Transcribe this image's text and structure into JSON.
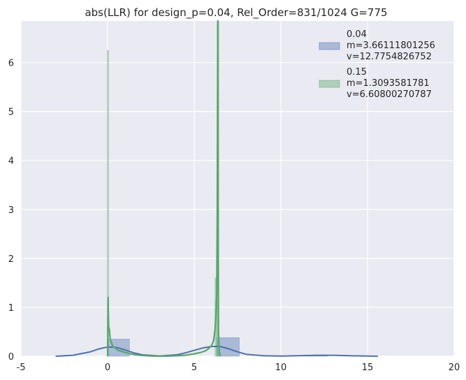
{
  "chart_data": {
    "type": "histogram-kde",
    "title": "abs(LLR) for design_p=0.04, Rel_Order=831/1024 G=775",
    "xlabel": "",
    "ylabel": "",
    "xlim": [
      -5,
      20
    ],
    "ylim": [
      0,
      6.85
    ],
    "xticks": [
      -5,
      0,
      5,
      10,
      15,
      20
    ],
    "yticks": [
      0,
      1,
      2,
      3,
      4,
      5,
      6
    ],
    "grid": true,
    "legend_position": "top-right",
    "series": [
      {
        "name": "0.04",
        "legend_lines": [
          "0.04",
          " m=3.66111801256",
          " v=12.7754826752"
        ],
        "color": "#4C72B0",
        "bins": [
          {
            "x0": 0.0,
            "x1": 1.26,
            "height": 0.35
          },
          {
            "x0": 6.3,
            "x1": 7.6,
            "height": 0.38
          },
          {
            "x0": 11.4,
            "x1": 12.7,
            "height": 0.01
          }
        ],
        "kde": [
          [
            -3.0,
            0.0
          ],
          [
            -2.0,
            0.02
          ],
          [
            -1.0,
            0.09
          ],
          [
            -0.5,
            0.15
          ],
          [
            0.0,
            0.19
          ],
          [
            0.5,
            0.18
          ],
          [
            1.0,
            0.13
          ],
          [
            1.5,
            0.07
          ],
          [
            2.0,
            0.03
          ],
          [
            3.0,
            0.005
          ],
          [
            4.0,
            0.03
          ],
          [
            4.5,
            0.07
          ],
          [
            5.0,
            0.12
          ],
          [
            5.5,
            0.17
          ],
          [
            6.0,
            0.2
          ],
          [
            6.5,
            0.2
          ],
          [
            7.0,
            0.15
          ],
          [
            7.5,
            0.09
          ],
          [
            8.0,
            0.04
          ],
          [
            9.0,
            0.01
          ],
          [
            10.0,
            0.003
          ],
          [
            11.0,
            0.01
          ],
          [
            12.0,
            0.02
          ],
          [
            13.0,
            0.02
          ],
          [
            14.0,
            0.01
          ],
          [
            15.0,
            0.003
          ],
          [
            15.6,
            0.0
          ]
        ]
      },
      {
        "name": "0.15",
        "legend_lines": [
          "0.15",
          " m=1.3093581781",
          " v=6.60800270787"
        ],
        "color": "#55A868",
        "bins": [
          {
            "x0": -0.02,
            "x1": 0.06,
            "height": 6.25
          },
          {
            "x0": 6.2,
            "x1": 6.32,
            "height": 1.6
          },
          {
            "x0": 6.32,
            "x1": 6.42,
            "height": 6.9
          }
        ],
        "kde": [
          [
            0.0,
            0.0
          ],
          [
            0.03,
            1.2
          ],
          [
            0.06,
            0.6
          ],
          [
            0.1,
            0.55
          ],
          [
            0.15,
            0.35
          ],
          [
            0.2,
            0.3
          ],
          [
            0.3,
            0.2
          ],
          [
            0.4,
            0.18
          ],
          [
            0.6,
            0.12
          ],
          [
            0.8,
            0.1
          ],
          [
            1.0,
            0.08
          ],
          [
            1.3,
            0.05
          ],
          [
            1.6,
            0.03
          ],
          [
            2.0,
            0.015
          ],
          [
            2.5,
            0.005
          ],
          [
            3.0,
            0.002
          ],
          [
            3.5,
            0.004
          ],
          [
            4.0,
            0.01
          ],
          [
            4.5,
            0.02
          ],
          [
            5.0,
            0.05
          ],
          [
            5.4,
            0.08
          ],
          [
            5.7,
            0.12
          ],
          [
            5.9,
            0.18
          ],
          [
            6.0,
            0.22
          ],
          [
            6.1,
            0.3
          ],
          [
            6.15,
            0.4
          ],
          [
            6.2,
            0.55
          ],
          [
            6.25,
            0.85
          ],
          [
            6.3,
            1.3
          ],
          [
            6.33,
            3.0
          ],
          [
            6.36,
            6.9
          ],
          [
            6.38,
            3.0
          ],
          [
            6.4,
            0.5
          ],
          [
            6.45,
            0.1
          ],
          [
            6.5,
            0.0
          ]
        ]
      }
    ]
  }
}
